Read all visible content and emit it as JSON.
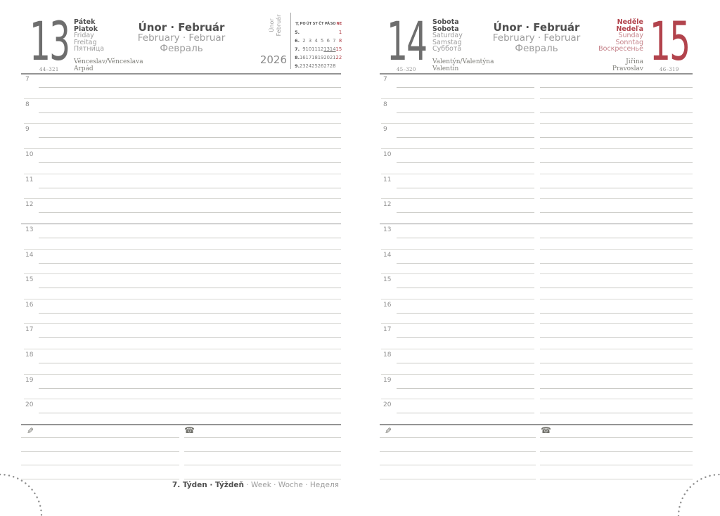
{
  "schedule": {
    "hours": [
      "7",
      "8",
      "9",
      "10",
      "11",
      "12",
      "13",
      "14",
      "15",
      "16",
      "17",
      "18",
      "19",
      "20"
    ],
    "noon_divider_hour": "13"
  },
  "month_header": {
    "native": "Únor · Február",
    "latin": "February · Februar",
    "cyrillic": "Февраль"
  },
  "left_page": {
    "day_number": "13",
    "page_ref": "44–321",
    "day_names": [
      "Pátek",
      "Piatok",
      "Friday",
      "Freitag",
      "Пятница"
    ],
    "name_days": [
      "Věnceslav/Věnceslava",
      "Arpád"
    ],
    "sidebar": {
      "month_line1": "Únor",
      "month_line2": "Február",
      "year": "2026"
    },
    "mini_calendar": {
      "week_header": "T.",
      "day_headers": [
        "PO",
        "ÚT",
        "ST",
        "ČT",
        "PÁ",
        "SO",
        "NE"
      ],
      "red_header": "NE",
      "weeks": [
        {
          "num": "5.",
          "days": [
            "",
            "",
            "",
            "",
            "",
            "",
            "1"
          ]
        },
        {
          "num": "6.",
          "days": [
            "2",
            "3",
            "4",
            "5",
            "6",
            "7",
            "8"
          ]
        },
        {
          "num": "7.",
          "days": [
            "9",
            "10",
            "11",
            "12",
            "13",
            "14",
            "15"
          ]
        },
        {
          "num": "8.",
          "days": [
            "16",
            "17",
            "18",
            "19",
            "20",
            "21",
            "22"
          ]
        },
        {
          "num": "9.",
          "days": [
            "23",
            "24",
            "25",
            "26",
            "27",
            "28",
            ""
          ]
        }
      ],
      "red_days": [
        "1",
        "8",
        "15",
        "22"
      ],
      "underlined_days": [
        "13",
        "14"
      ]
    }
  },
  "right_page": {
    "saturday": {
      "day_number": "14",
      "page_ref": "45–320",
      "day_names": [
        "Sobota",
        "Sobota",
        "Saturday",
        "Samstag",
        "Суббота"
      ],
      "name_days": [
        "Valentýn/Valentýna",
        "Valentín"
      ]
    },
    "sunday": {
      "day_number": "15",
      "page_ref": "46–319",
      "day_names": [
        "Neděle",
        "Nedeľa",
        "Sunday",
        "Sonntag",
        "Воскресенье"
      ],
      "name_days": [
        "Jiřina",
        "Pravoslav"
      ]
    }
  },
  "icons": {
    "pencil": "✎",
    "phone": "☎"
  },
  "footer": {
    "week_bold": "7. Týden · Týždeň",
    "week_light": "· Week · Woche · Неделя"
  },
  "colors": {
    "accent_red": "#b2434c",
    "ink_dark": "#4e4e4e",
    "ink_light": "#9d9d9d",
    "number_gray": "#6e6e6e",
    "line_dark": "#949494",
    "line_light": "#d9d9d5"
  }
}
